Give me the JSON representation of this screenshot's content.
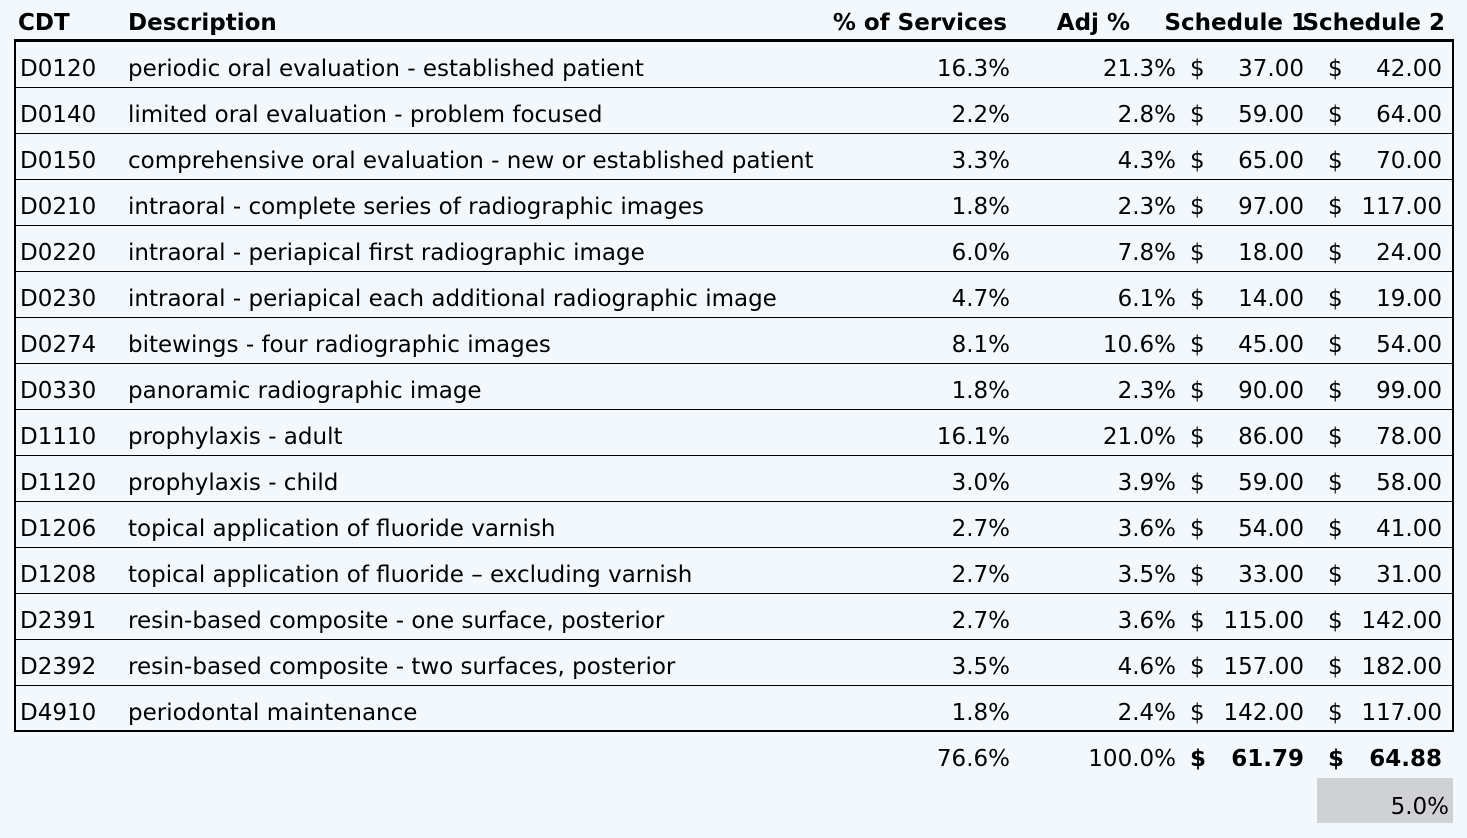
{
  "headers": {
    "cdt": "CDT",
    "description": "Description",
    "pct_services": "% of Services",
    "adj_pct": "Adj %",
    "schedule1": "Schedule 1",
    "schedule2": "Schedule 2"
  },
  "currency_symbol": "$",
  "rows": [
    {
      "cdt": "D0120",
      "description": "periodic oral evaluation - established patient",
      "pct": "16.3%",
      "adj": "21.3%",
      "s1": "37.00",
      "s2": "42.00"
    },
    {
      "cdt": "D0140",
      "description": "limited oral evaluation - problem focused",
      "pct": "2.2%",
      "adj": "2.8%",
      "s1": "59.00",
      "s2": "64.00"
    },
    {
      "cdt": "D0150",
      "description": "comprehensive oral evaluation - new or established patient",
      "pct": "3.3%",
      "adj": "4.3%",
      "s1": "65.00",
      "s2": "70.00"
    },
    {
      "cdt": "D0210",
      "description": "intraoral - complete series of radiographic images",
      "pct": "1.8%",
      "adj": "2.3%",
      "s1": "97.00",
      "s2": "117.00"
    },
    {
      "cdt": "D0220",
      "description": "intraoral - periapical first radiographic image",
      "pct": "6.0%",
      "adj": "7.8%",
      "s1": "18.00",
      "s2": "24.00"
    },
    {
      "cdt": "D0230",
      "description": "intraoral - periapical each additional radiographic image",
      "pct": "4.7%",
      "adj": "6.1%",
      "s1": "14.00",
      "s2": "19.00"
    },
    {
      "cdt": "D0274",
      "description": "bitewings - four radiographic images",
      "pct": "8.1%",
      "adj": "10.6%",
      "s1": "45.00",
      "s2": "54.00"
    },
    {
      "cdt": "D0330",
      "description": "panoramic radiographic image",
      "pct": "1.8%",
      "adj": "2.3%",
      "s1": "90.00",
      "s2": "99.00"
    },
    {
      "cdt": "D1110",
      "description": "prophylaxis - adult",
      "pct": "16.1%",
      "adj": "21.0%",
      "s1": "86.00",
      "s2": "78.00"
    },
    {
      "cdt": "D1120",
      "description": "prophylaxis - child",
      "pct": "3.0%",
      "adj": "3.9%",
      "s1": "59.00",
      "s2": "58.00"
    },
    {
      "cdt": "D1206",
      "description": "topical application of fluoride varnish",
      "pct": "2.7%",
      "adj": "3.6%",
      "s1": "54.00",
      "s2": "41.00"
    },
    {
      "cdt": "D1208",
      "description": "topical application of fluoride – excluding varnish",
      "pct": "2.7%",
      "adj": "3.5%",
      "s1": "33.00",
      "s2": "31.00"
    },
    {
      "cdt": "D2391",
      "description": "resin-based composite - one surface, posterior",
      "pct": "2.7%",
      "adj": "3.6%",
      "s1": "115.00",
      "s2": "142.00"
    },
    {
      "cdt": "D2392",
      "description": "resin-based composite - two surfaces, posterior",
      "pct": "3.5%",
      "adj": "4.6%",
      "s1": "157.00",
      "s2": "182.00"
    },
    {
      "cdt": "D4910",
      "description": "periodontal maintenance",
      "pct": "1.8%",
      "adj": "2.4%",
      "s1": "142.00",
      "s2": "117.00"
    }
  ],
  "totals": {
    "pct": "76.6%",
    "adj": "100.0%",
    "s1": "61.79",
    "s2": "64.88"
  },
  "difference_pct": "5.0%",
  "colors": {
    "background": "#f3f8fc",
    "highlight_cell": "#cfd1d4"
  }
}
